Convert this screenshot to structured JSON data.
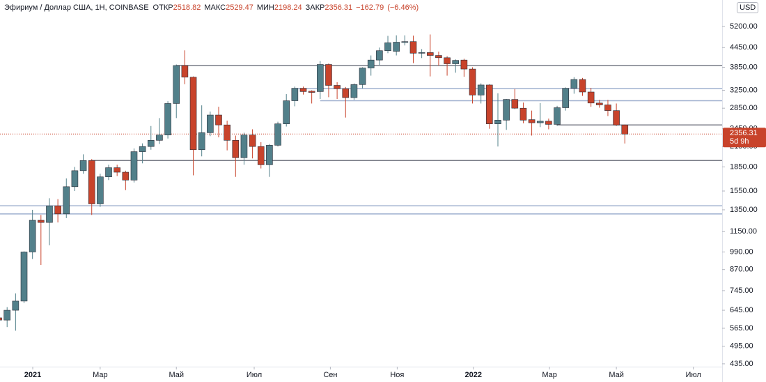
{
  "chart_data": {
    "type": "candlestick",
    "title": "Эфириум / Доллар США, 1Н, COINBASE",
    "open_label": "ОТКР",
    "high_label": "МАКС",
    "low_label": "МИН",
    "close_label": "ЗАКР",
    "change": {
      "value": -162.79,
      "label": "−162.79"
    },
    "change_pct": {
      "value": -6.46,
      "label": "(−6.46%)"
    },
    "currency": "USD",
    "countdown": "5d 9h",
    "up_color": "#52808a",
    "down_color": "#c8432b",
    "log_scale": true,
    "grid": false,
    "ylim": [
      426,
      6314
    ],
    "yticks": [
      {
        "value": 5200,
        "label": "5200.00"
      },
      {
        "value": 4450,
        "label": "4450.00"
      },
      {
        "value": 3850,
        "label": "3850.00"
      },
      {
        "value": 3250,
        "label": "3250.00"
      },
      {
        "value": 2850,
        "label": "2850.00"
      },
      {
        "value": 2450,
        "label": "2450.00"
      },
      {
        "value": 2150,
        "label": "2150.00"
      },
      {
        "value": 1850,
        "label": "1850.00"
      },
      {
        "value": 1550,
        "label": "1550.00"
      },
      {
        "value": 1350,
        "label": "1350.00"
      },
      {
        "value": 1150,
        "label": "1150.00"
      },
      {
        "value": 990,
        "label": "990.00"
      },
      {
        "value": 870,
        "label": "870.00"
      },
      {
        "value": 745,
        "label": "745.00"
      },
      {
        "value": 645,
        "label": "645.00"
      },
      {
        "value": 565,
        "label": "565.00"
      },
      {
        "value": 495,
        "label": "495.00"
      },
      {
        "value": 435,
        "label": "435.00"
      }
    ],
    "xlim": [
      0.16,
      85.5
    ],
    "xticks": [
      {
        "value": 4.03,
        "label": "2021"
      },
      {
        "value": 12.0,
        "label": "Мар"
      },
      {
        "value": 21.0,
        "label": "Май"
      },
      {
        "value": 30.2,
        "label": "Июл"
      },
      {
        "value": 39.2,
        "label": "Сен"
      },
      {
        "value": 47.1,
        "label": "Ноя"
      },
      {
        "value": 56.1,
        "label": "2022"
      },
      {
        "value": 65.1,
        "label": "Мар"
      },
      {
        "value": 73.0,
        "label": "Май"
      },
      {
        "value": 82.1,
        "label": "Июл"
      }
    ],
    "open": [
      610,
      600,
      645,
      690,
      990,
      1250,
      1230,
      1390,
      1310,
      1600,
      1800,
      1940,
      1410,
      1720,
      1840,
      1780,
      1680,
      2070,
      2150,
      2250,
      2340,
      2950,
      3900,
      3580,
      2100,
      2380,
      2710,
      2520,
      2250,
      1980,
      2340,
      2150,
      1880,
      2170,
      2540,
      3010,
      3300,
      3230,
      3220,
      3930,
      3370,
      3290,
      3080,
      3390,
      3830,
      4060,
      4350,
      4330,
      4620,
      4650,
      4270,
      4290,
      4200,
      4130,
      3950,
      4060,
      3800,
      3140,
      3380,
      2540,
      2610,
      3040,
      2850,
      2620,
      2560,
      2590,
      2530,
      2860,
      3300,
      3520,
      3210,
      2960,
      2920,
      2800,
      2518.82
    ],
    "high": [
      615,
      660,
      730,
      995,
      1350,
      1300,
      1470,
      1460,
      1700,
      1850,
      2030,
      1960,
      1760,
      1880,
      1880,
      1800,
      2120,
      2200,
      2500,
      2650,
      3000,
      3930,
      4360,
      3600,
      2910,
      2780,
      2880,
      2600,
      2330,
      2380,
      2440,
      2220,
      2190,
      2580,
      3160,
      3340,
      3340,
      3250,
      4030,
      3960,
      3450,
      3330,
      3420,
      3850,
      4200,
      4450,
      4850,
      4870,
      4870,
      4860,
      4400,
      4900,
      4320,
      4180,
      4080,
      4100,
      3850,
      3420,
      3400,
      3180,
      3050,
      3280,
      2970,
      2800,
      2960,
      2640,
      2900,
      3320,
      3580,
      3560,
      3310,
      3030,
      3030,
      2950,
      2529.47
    ],
    "low": [
      590,
      570,
      555,
      680,
      940,
      900,
      1040,
      1230,
      1270,
      1550,
      1760,
      1300,
      1380,
      1680,
      1730,
      1560,
      1650,
      1900,
      2100,
      2190,
      2280,
      2650,
      3400,
      1740,
      2000,
      2320,
      2300,
      2090,
      1720,
      1880,
      1970,
      1830,
      1720,
      2150,
      2490,
      2890,
      3150,
      2950,
      3050,
      3090,
      3050,
      2660,
      3030,
      3300,
      3620,
      3920,
      4270,
      4200,
      4520,
      3970,
      4120,
      3600,
      3900,
      3620,
      3700,
      3590,
      2950,
      2950,
      2450,
      2150,
      2430,
      2830,
      2550,
      2330,
      2480,
      2440,
      2500,
      2800,
      3170,
      3120,
      2880,
      2860,
      2690,
      2500,
      2198.24
    ],
    "close": [
      600,
      645,
      690,
      990,
      1250,
      1230,
      1390,
      1310,
      1600,
      1800,
      1940,
      1410,
      1720,
      1840,
      1780,
      1680,
      2070,
      2150,
      2250,
      2340,
      2950,
      3900,
      3580,
      2100,
      2380,
      2710,
      2520,
      2250,
      1980,
      2340,
      2150,
      1880,
      2170,
      2540,
      3010,
      3300,
      3220,
      3200,
      3930,
      3370,
      3290,
      3080,
      3390,
      3830,
      4060,
      4350,
      4610,
      4630,
      4650,
      4270,
      4290,
      4200,
      4130,
      3950,
      4050,
      3800,
      3140,
      3380,
      2540,
      2610,
      3040,
      2850,
      2610,
      2560,
      2590,
      2530,
      2860,
      3300,
      3520,
      3210,
      2960,
      2920,
      2800,
      2520,
      2356.31
    ],
    "levels": [
      {
        "value": 3900,
        "from": 21,
        "color": "#787b86"
      },
      {
        "value": 3290,
        "from": 35,
        "color": "#9fb0cf"
      },
      {
        "value": 3010,
        "from": 38,
        "color": "#9fb0cf"
      },
      {
        "value": 2520,
        "from": 66,
        "color": "#787b86"
      },
      {
        "value": 1940,
        "from": 11,
        "color": "#787b86"
      },
      {
        "value": 1390,
        "from": 0,
        "color": "#9fb0cf"
      },
      {
        "value": 1310,
        "from": 0,
        "color": "#9fb0cf"
      }
    ]
  }
}
